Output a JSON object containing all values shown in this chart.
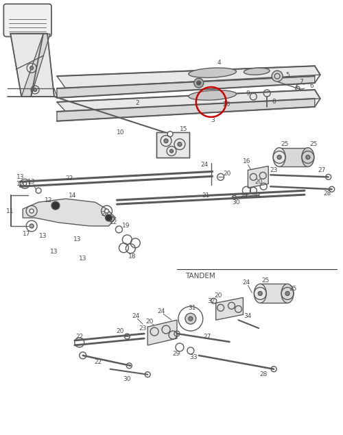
{
  "bg_color": "#ffffff",
  "line_color": "#5a5a5a",
  "label_color": "#4a4a4a",
  "lw": 1.0,
  "fs": 6.5,
  "tandem_label": "TANDEM",
  "red_circle_color": "#cc0000"
}
